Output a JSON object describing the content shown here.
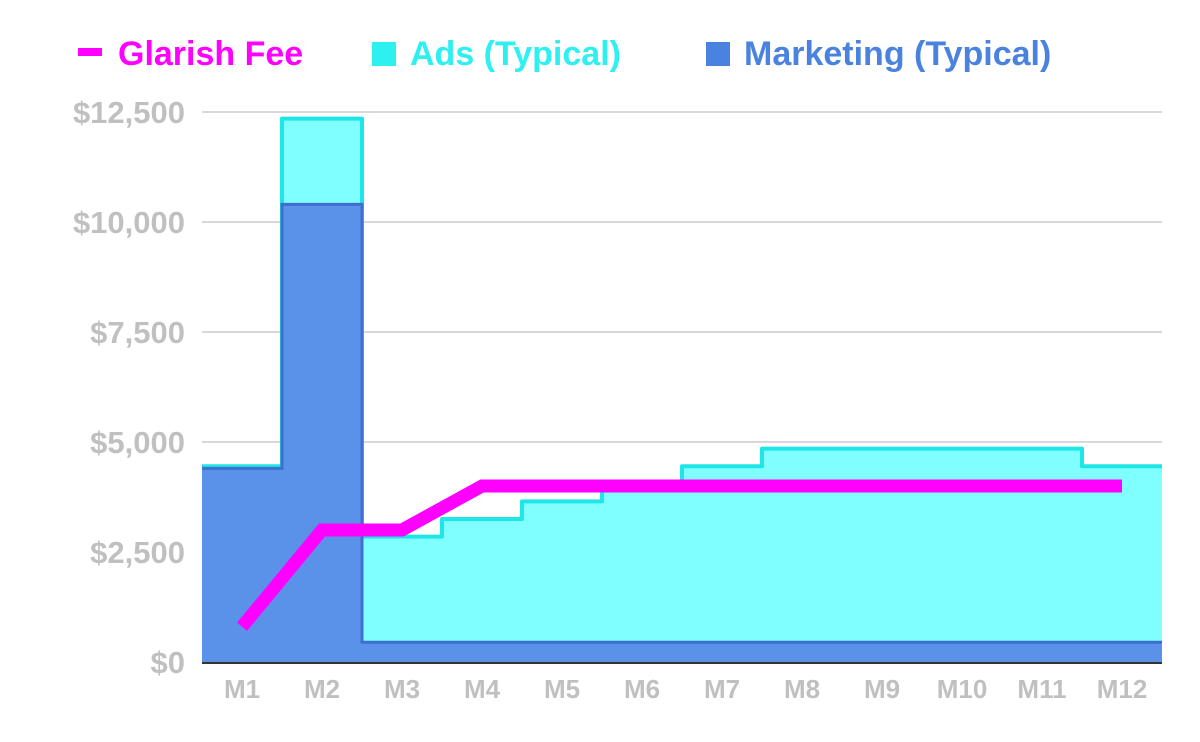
{
  "chart_data": {
    "type": "area",
    "categories": [
      "M1",
      "M2",
      "M3",
      "M4",
      "M5",
      "M6",
      "M7",
      "M8",
      "M9",
      "M10",
      "M11",
      "M12"
    ],
    "series": [
      {
        "name": "Glarish Fee",
        "kind": "line",
        "values": [
          800,
          3000,
          3000,
          4000,
          4000,
          4000,
          4000,
          4000,
          4000,
          4000,
          4000,
          4000
        ]
      },
      {
        "name": "Ads (Typical)",
        "kind": "step-area",
        "values": [
          4450,
          12350,
          2850,
          3250,
          3650,
          4050,
          4450,
          4850,
          4850,
          4850,
          4850,
          4450
        ]
      },
      {
        "name": "Marketing (Typical)",
        "kind": "step-area",
        "values": [
          4400,
          10400,
          450,
          450,
          450,
          450,
          450,
          450,
          450,
          450,
          450,
          450
        ]
      }
    ],
    "y_ticks": [
      "$0",
      "$2,500",
      "$5,000",
      "$7,500",
      "$10,000",
      "$12,500"
    ],
    "y_tick_values": [
      0,
      2500,
      5000,
      7500,
      10000,
      12500
    ],
    "ylim": [
      0,
      12500
    ],
    "grid": true,
    "legend_position": "top"
  },
  "colors": {
    "glarish_fee": "#ff00ff",
    "ads_fill": "#7fffff",
    "ads_stroke": "#1ee6e6",
    "ads_text": "#2ff0f0",
    "marketing_fill": "#5a8ee8",
    "marketing_text": "#4a82e0",
    "grid": "#cccccc",
    "axis": "#333333",
    "tick_text": "#c0c0c0"
  }
}
